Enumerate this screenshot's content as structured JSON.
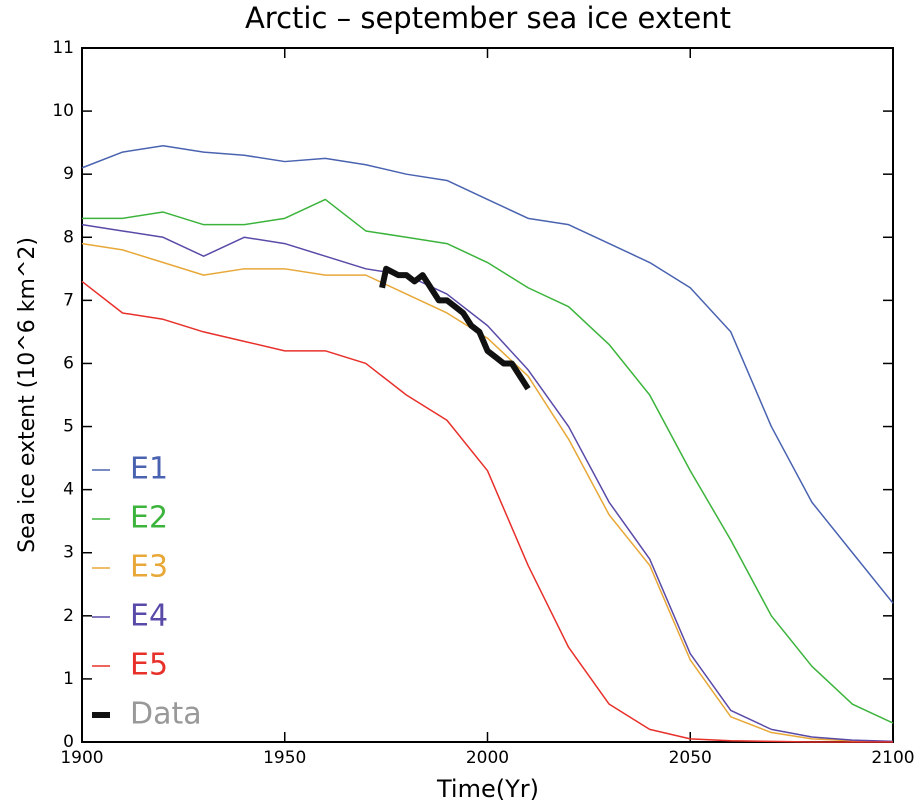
{
  "chart_data": {
    "type": "line",
    "title": "Arctic – september sea ice extent",
    "xlabel": "Time(Yr)",
    "ylabel": "Sea ice extent (10^6 km^2)",
    "xlim": [
      1900,
      2100
    ],
    "ylim": [
      0,
      11
    ],
    "xticks": [
      1900,
      1950,
      2000,
      2050,
      2100
    ],
    "yticks": [
      0,
      1,
      2,
      3,
      4,
      5,
      6,
      7,
      8,
      9,
      10,
      11
    ],
    "legend": "lower left",
    "series": [
      {
        "name": "E1",
        "color": "#4a63b0",
        "width": 1.5,
        "x": [
          1900,
          1910,
          1920,
          1930,
          1940,
          1950,
          1960,
          1970,
          1980,
          1990,
          2000,
          2010,
          2020,
          2030,
          2040,
          2050,
          2060,
          2070,
          2080,
          2090,
          2100
        ],
        "values": [
          9.1,
          9.35,
          9.45,
          9.35,
          9.3,
          9.2,
          9.25,
          9.15,
          9.0,
          8.9,
          8.6,
          8.3,
          8.2,
          7.9,
          7.6,
          7.2,
          6.5,
          5.0,
          3.8,
          3.0,
          2.2
        ]
      },
      {
        "name": "E2",
        "color": "#3cb43c",
        "width": 1.5,
        "x": [
          1900,
          1910,
          1920,
          1930,
          1940,
          1950,
          1960,
          1970,
          1980,
          1990,
          2000,
          2010,
          2020,
          2030,
          2040,
          2050,
          2060,
          2070,
          2080,
          2090,
          2100
        ],
        "values": [
          8.3,
          8.3,
          8.4,
          8.2,
          8.2,
          8.3,
          8.6,
          8.1,
          8.0,
          7.9,
          7.6,
          7.2,
          6.9,
          6.3,
          5.5,
          4.3,
          3.2,
          2.0,
          1.2,
          0.6,
          0.3
        ]
      },
      {
        "name": "E3",
        "color": "#e8a838",
        "width": 1.5,
        "x": [
          1900,
          1910,
          1920,
          1930,
          1940,
          1950,
          1960,
          1970,
          1980,
          1990,
          2000,
          2010,
          2020,
          2030,
          2040,
          2050,
          2060,
          2070,
          2080,
          2090,
          2100
        ],
        "values": [
          7.9,
          7.8,
          7.6,
          7.4,
          7.5,
          7.5,
          7.4,
          7.4,
          7.1,
          6.8,
          6.4,
          5.8,
          4.8,
          3.6,
          2.8,
          1.3,
          0.4,
          0.15,
          0.05,
          0.02,
          0.01
        ]
      },
      {
        "name": "E4",
        "color": "#5a4aa8",
        "width": 1.5,
        "x": [
          1900,
          1910,
          1920,
          1930,
          1940,
          1950,
          1960,
          1970,
          1980,
          1990,
          2000,
          2010,
          2020,
          2030,
          2040,
          2050,
          2060,
          2070,
          2080,
          2090,
          2100
        ],
        "values": [
          8.2,
          8.1,
          8.0,
          7.7,
          8.0,
          7.9,
          7.7,
          7.5,
          7.4,
          7.1,
          6.6,
          5.9,
          5.0,
          3.8,
          2.9,
          1.4,
          0.5,
          0.2,
          0.08,
          0.03,
          0.01
        ]
      },
      {
        "name": "E5",
        "color": "#e8302a",
        "width": 1.5,
        "x": [
          1900,
          1910,
          1920,
          1930,
          1940,
          1950,
          1960,
          1970,
          1980,
          1990,
          2000,
          2010,
          2020,
          2030,
          2040,
          2050,
          2060,
          2070,
          2080,
          2090,
          2100
        ],
        "values": [
          7.3,
          6.8,
          6.7,
          6.5,
          6.35,
          6.2,
          6.2,
          6.0,
          5.5,
          5.1,
          4.3,
          2.8,
          1.5,
          0.6,
          0.2,
          0.05,
          0.02,
          0.01,
          0,
          0,
          0
        ]
      },
      {
        "name": "Data",
        "color": "#111111",
        "width": 6,
        "legend_text_color": "#999999",
        "x": [
          1974,
          1975,
          1978,
          1980,
          1982,
          1984,
          1986,
          1988,
          1990,
          1992,
          1994,
          1996,
          1998,
          2000,
          2002,
          2004,
          2006,
          2008,
          2010
        ],
        "values": [
          7.2,
          7.5,
          7.4,
          7.4,
          7.3,
          7.4,
          7.2,
          7.0,
          7.0,
          6.9,
          6.8,
          6.6,
          6.5,
          6.2,
          6.1,
          6.0,
          6.0,
          5.8,
          5.6
        ]
      }
    ]
  }
}
